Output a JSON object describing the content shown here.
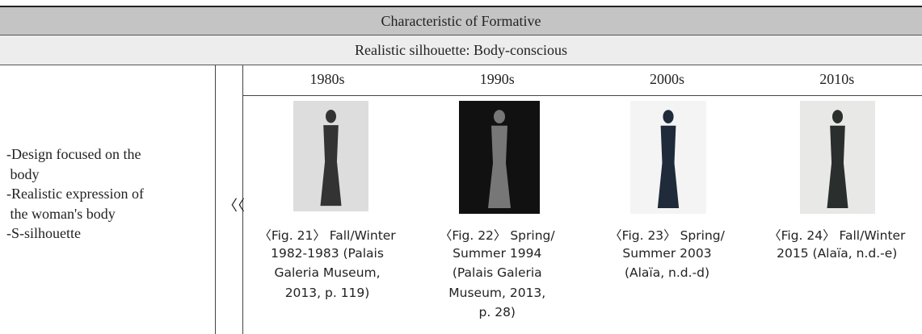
{
  "header": {
    "title": "Characteristic of Formative",
    "subtitle": "Realistic silhouette: Body-conscious"
  },
  "left": {
    "lines": [
      "-Design focused on the",
      " body",
      "-Realistic expression of",
      " the woman's body",
      "-S-silhouette"
    ]
  },
  "arrow": "〈〈",
  "columns": [
    {
      "year": "1980s",
      "caption": [
        "〈Fig. 21〉 Fall/Winter",
        "1982-1983 (Palais",
        "Galeria Museum,",
        "2013, p. 119)"
      ]
    },
    {
      "year": "1990s",
      "caption": [
        "〈Fig. 22〉 Spring/",
        "Summer 1994",
        "(Palais Galeria",
        "Museum, 2013,",
        "p. 28)"
      ]
    },
    {
      "year": "2000s",
      "caption": [
        "〈Fig. 23〉 Spring/",
        "Summer 2003",
        "(Alaïa, n.d.-d)"
      ]
    },
    {
      "year": "2010s",
      "caption": [
        "〈Fig. 24〉 Fall/Winter",
        "2015 (Alaïa, n.d.-e)"
      ]
    }
  ]
}
